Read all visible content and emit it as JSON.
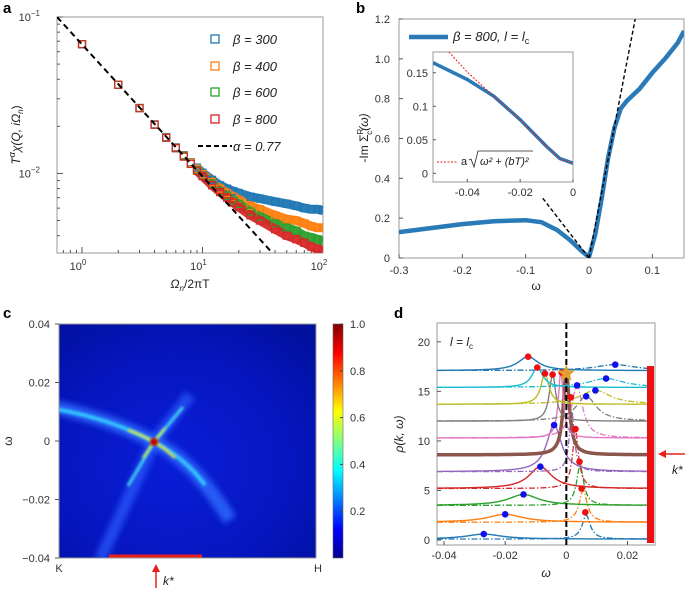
{
  "panels": {
    "a": "a",
    "b": "b",
    "c": "c",
    "d": "d"
  },
  "chart_data": [
    {
      "panel": "a",
      "type": "scatter",
      "xscale": "log",
      "yscale": "log",
      "xlim": [
        0.62,
        100
      ],
      "ylim": [
        0.0031,
        0.1
      ],
      "xlabel": {
        "main": "Ω",
        "sub": "n",
        "rest": "/2πT"
      },
      "ylabel": {
        "T": "T",
        "sup": "α",
        "rest": "χ(Q, iΩ",
        "sub": "n",
        "end": ")"
      },
      "xticks": [
        {
          "base": "10",
          "exp": "0",
          "v": 1
        },
        {
          "base": "10",
          "exp": "1",
          "v": 10
        },
        {
          "base": "10",
          "exp": "2",
          "v": 100
        }
      ],
      "yticks": [
        {
          "base": "10",
          "exp": "−1",
          "v": 0.1
        },
        {
          "base": "10",
          "exp": "−2",
          "v": 0.01
        }
      ],
      "legend_position": "top-right",
      "x": [
        1,
        2,
        3,
        4,
        5,
        6,
        7,
        8,
        9,
        10,
        12,
        14,
        16,
        18,
        20,
        25,
        30,
        40,
        50,
        60,
        70,
        80,
        90,
        100
      ],
      "series": [
        {
          "name": "β = 300",
          "color": "#1f77b4",
          "marker": "square-open",
          "values": [
            0.0671,
            0.0369,
            0.0262,
            0.0206,
            0.0171,
            0.0147,
            0.0131,
            0.0118,
            0.0109,
            0.0101,
            0.0091,
            0.0084,
            0.008,
            0.0077,
            0.0075,
            0.0071,
            0.0069,
            0.0066,
            0.0064,
            0.0062,
            0.006,
            0.0059,
            0.0059,
            0.0058
          ]
        },
        {
          "name": "β = 400",
          "color": "#ff7f0e",
          "marker": "square-open",
          "values": [
            0.067,
            0.0369,
            0.0262,
            0.0205,
            0.017,
            0.0146,
            0.013,
            0.0117,
            0.0107,
            0.0099,
            0.0088,
            0.008,
            0.0075,
            0.0071,
            0.0068,
            0.0062,
            0.0059,
            0.0054,
            0.0051,
            0.005,
            0.0048,
            0.0046,
            0.0045,
            0.0045
          ]
        },
        {
          "name": "β = 600",
          "color": "#2ca02c",
          "marker": "square-open",
          "values": [
            0.067,
            0.0369,
            0.0262,
            0.0205,
            0.0169,
            0.0145,
            0.0129,
            0.0115,
            0.0105,
            0.0097,
            0.0086,
            0.0077,
            0.0072,
            0.0067,
            0.0064,
            0.0057,
            0.0053,
            0.0048,
            0.0045,
            0.0043,
            0.004,
            0.0039,
            0.0038,
            0.0037
          ]
        },
        {
          "name": "β = 800",
          "color": "#d62728",
          "marker": "square-open",
          "values": [
            0.067,
            0.0369,
            0.0261,
            0.0205,
            0.0169,
            0.0145,
            0.0128,
            0.0115,
            0.0104,
            0.0096,
            0.0084,
            0.0076,
            0.007,
            0.0065,
            0.0061,
            0.0054,
            0.005,
            0.0044,
            0.004,
            0.0038,
            0.0036,
            0.0034,
            0.0033,
            0.0032
          ]
        }
      ],
      "fit_line": {
        "name": "α = 0.77",
        "color": "#000000",
        "style": "dashed",
        "x": [
          0.62,
          38
        ],
        "y": [
          0.1,
          0.0031
        ]
      }
    },
    {
      "panel": "b",
      "type": "line",
      "xlim": [
        -0.3,
        0.15
      ],
      "ylim": [
        0,
        1.2
      ],
      "xlabel": "ω",
      "ylabel": {
        "main": "-Im Σ",
        "sup": "R",
        "sub": "c",
        "end": "(ω)"
      },
      "xticks": [
        -0.3,
        -0.2,
        -0.1,
        0,
        0.1
      ],
      "xticklabels": [
        "-0.3",
        "-0.2",
        "-0.1",
        "0",
        "0.1"
      ],
      "yticks": [
        0,
        0.2,
        0.4,
        0.6,
        0.8,
        1.0,
        1.2
      ],
      "yticklabels": [
        "0",
        "0.2",
        "0.4",
        "0.6",
        "0.8",
        "1.0",
        "1.2"
      ],
      "legend_position": "top-left",
      "series": [
        {
          "name_main": "β = 800, l = l",
          "name_sub": "c",
          "color": "#2a7ab8",
          "x": [
            -0.3,
            -0.25,
            -0.2,
            -0.15,
            -0.1,
            -0.075,
            -0.05,
            -0.03,
            -0.01,
            0,
            0.01,
            0.02,
            0.03,
            0.04,
            0.05,
            0.06,
            0.08,
            0.1,
            0.12,
            0.14,
            0.15
          ],
          "y": [
            0.13,
            0.15,
            0.17,
            0.185,
            0.19,
            0.18,
            0.14,
            0.09,
            0.03,
            0.005,
            0.12,
            0.3,
            0.5,
            0.65,
            0.75,
            0.79,
            0.85,
            0.93,
            1.0,
            1.08,
            1.14
          ]
        }
      ],
      "guide_lines": [
        {
          "color": "#000000",
          "style": "dashed",
          "x": [
            -0.073,
            0
          ],
          "y": [
            0.3,
            0
          ]
        },
        {
          "color": "#000000",
          "style": "dashed",
          "x": [
            0,
            0.073
          ],
          "y": [
            0,
            1.2
          ]
        }
      ],
      "inset": {
        "xlim": [
          -0.053,
          0
        ],
        "ylim": [
          -0.013,
          0.181
        ],
        "xticks": [
          -0.04,
          -0.02,
          0
        ],
        "xticklabels": [
          "-0.04",
          "-0.02",
          "0"
        ],
        "yticks": [
          0,
          0.05,
          0.1,
          0.15
        ],
        "yticklabels": [
          "0",
          "0.05",
          "0.1",
          "0.15"
        ],
        "data": {
          "color": "#2a7ab8",
          "x": [
            -0.053,
            -0.04,
            -0.03,
            -0.02,
            -0.01,
            -0.005,
            0
          ],
          "y": [
            0.165,
            0.14,
            0.115,
            0.08,
            0.04,
            0.022,
            0.015
          ]
        },
        "fit": {
          "label_a": "a",
          "label_expr": "ω² + (bT)²",
          "color": "#e8201c",
          "style": "dashed",
          "x": [
            -0.047,
            -0.04,
            -0.03,
            -0.02,
            -0.01,
            -0.005,
            0
          ],
          "y": [
            0.181,
            0.151,
            0.115,
            0.079,
            0.04,
            0.021,
            0.015
          ]
        }
      }
    },
    {
      "panel": "c",
      "type": "heatmap",
      "colormap": "jet",
      "ylim": [
        -0.04,
        0.04
      ],
      "ylabel": "ω",
      "yticks": [
        0.04,
        0.02,
        0,
        -0.02,
        -0.04
      ],
      "yticklabels": [
        "0.04",
        "0.02",
        "0",
        "−0.02",
        "−0.04"
      ],
      "xticklabels": [
        "K",
        "H"
      ],
      "colorbar": {
        "range": [
          0,
          1.0
        ],
        "ticks": [
          0.2,
          0.4,
          0.6,
          0.8,
          1.0
        ],
        "ticklabels": [
          "0.2",
          "0.4",
          "0.6",
          "0.8",
          "1.0"
        ]
      },
      "marker_label": "k*",
      "marker_color": "#e8201c"
    },
    {
      "panel": "d",
      "type": "line",
      "xlim": [
        -0.0423,
        0.029
      ],
      "ylim": [
        -0.5,
        21.9
      ],
      "xlabel": "ω",
      "ylabel": "ρ(k, ω)",
      "annotation": {
        "main": "l = l",
        "sub": "c"
      },
      "xticks": [
        -0.04,
        -0.02,
        0,
        0.02
      ],
      "xticklabels": [
        "-0.04",
        "-0.02",
        "0",
        "0.02"
      ],
      "yticks": [
        0,
        5,
        10,
        15,
        20
      ],
      "yticklabels": [
        "0",
        "5",
        "10",
        "15",
        "20"
      ],
      "marker_label": "k*",
      "marker_color": "#e8201c",
      "rows": [
        {
          "color": "#1f77b4",
          "base": 0.1,
          "solid": {
            "x0": -0.027,
            "peak": 0.6,
            "width": 0.007
          },
          "dashdot": {
            "x0": 0.0065,
            "peak": 2.5,
            "width": 0.0016
          }
        },
        {
          "color": "#ff7f0e",
          "base": 1.8,
          "solid": {
            "x0": -0.02,
            "peak": 2.6,
            "width": 0.007
          },
          "dashdot": {
            "x0": 0.0055,
            "peak": 5.0,
            "width": 0.0016
          }
        },
        {
          "color": "#2ca02c",
          "base": 3.5,
          "solid": {
            "x0": -0.014,
            "peak": 4.6,
            "width": 0.006
          },
          "dashdot": {
            "x0": 0.0045,
            "peak": 7.5,
            "width": 0.0014
          }
        },
        {
          "color": "#d62728",
          "base": 5.2,
          "solid": {
            "x0": -0.0085,
            "peak": 7.4,
            "width": 0.0045
          },
          "dashdot": {
            "x0": 0.003,
            "peak": 11.0,
            "width": 0.0012
          }
        },
        {
          "color": "#9467bd",
          "base": 6.9,
          "solid": {
            "x0": -0.004,
            "peak": 11.6,
            "width": 0.003
          },
          "dashdot": {
            "x0": 0.0018,
            "peak": 13.0,
            "width": 0.001
          }
        },
        {
          "color": "#8c564b",
          "base": 8.6,
          "solid": {
            "x0": 0,
            "peak": 17.0,
            "width": 0.0012
          },
          "dashdot": null,
          "thick": true
        },
        {
          "color": "#e377c2",
          "base": 10.3,
          "solid": {
            "x0": -0.0018,
            "peak": 16.9,
            "width": 0.001
          },
          "dashdot": {
            "x0": 0.0035,
            "peak": 15.6,
            "width": 0.0022
          }
        },
        {
          "color": "#7f7f7f",
          "base": 12.0,
          "solid": {
            "x0": -0.0045,
            "peak": 16.7,
            "width": 0.0013
          },
          "dashdot": {
            "x0": 0.0065,
            "peak": 14.5,
            "width": 0.004
          }
        },
        {
          "color": "#bcbd22",
          "base": 13.7,
          "solid": {
            "x0": -0.007,
            "peak": 16.8,
            "width": 0.0016
          },
          "dashdot": {
            "x0": 0.0095,
            "peak": 15.1,
            "width": 0.006
          }
        },
        {
          "color": "#17becf",
          "base": 15.4,
          "solid": {
            "x0": -0.0095,
            "peak": 17.4,
            "width": 0.0022
          },
          "dashdot": {
            "x0": 0.013,
            "peak": 16.3,
            "width": 0.007
          }
        },
        {
          "color": "#1f77b4",
          "base": 17.1,
          "solid": {
            "x0": -0.0125,
            "peak": 18.5,
            "width": 0.004
          },
          "dashdot": {
            "x0": 0.016,
            "peak": 17.7,
            "width": 0.008
          }
        }
      ],
      "blue_dots": {
        "color": "#1010ee",
        "x": [
          -0.027,
          -0.02,
          -0.014,
          -0.0085,
          -0.004,
          0.0065,
          0.0095,
          0.0035,
          0.013,
          0.016
        ],
        "y": [
          0.6,
          2.6,
          4.6,
          7.4,
          11.6,
          14.5,
          15.1,
          15.6,
          16.3,
          17.7
        ]
      },
      "red_dots": {
        "color": "#ee1010",
        "x": [
          0.0062,
          0.005,
          0.0043,
          0.003,
          0.0015,
          -0.0015,
          -0.0045,
          -0.007,
          -0.0095,
          -0.0125
        ],
        "y": [
          2.8,
          5.2,
          7.9,
          11.2,
          14.4,
          16.9,
          16.7,
          16.8,
          17.4,
          18.5
        ]
      },
      "star": {
        "color": "#e0a030",
        "x": 0,
        "y": 16.8
      }
    }
  ]
}
